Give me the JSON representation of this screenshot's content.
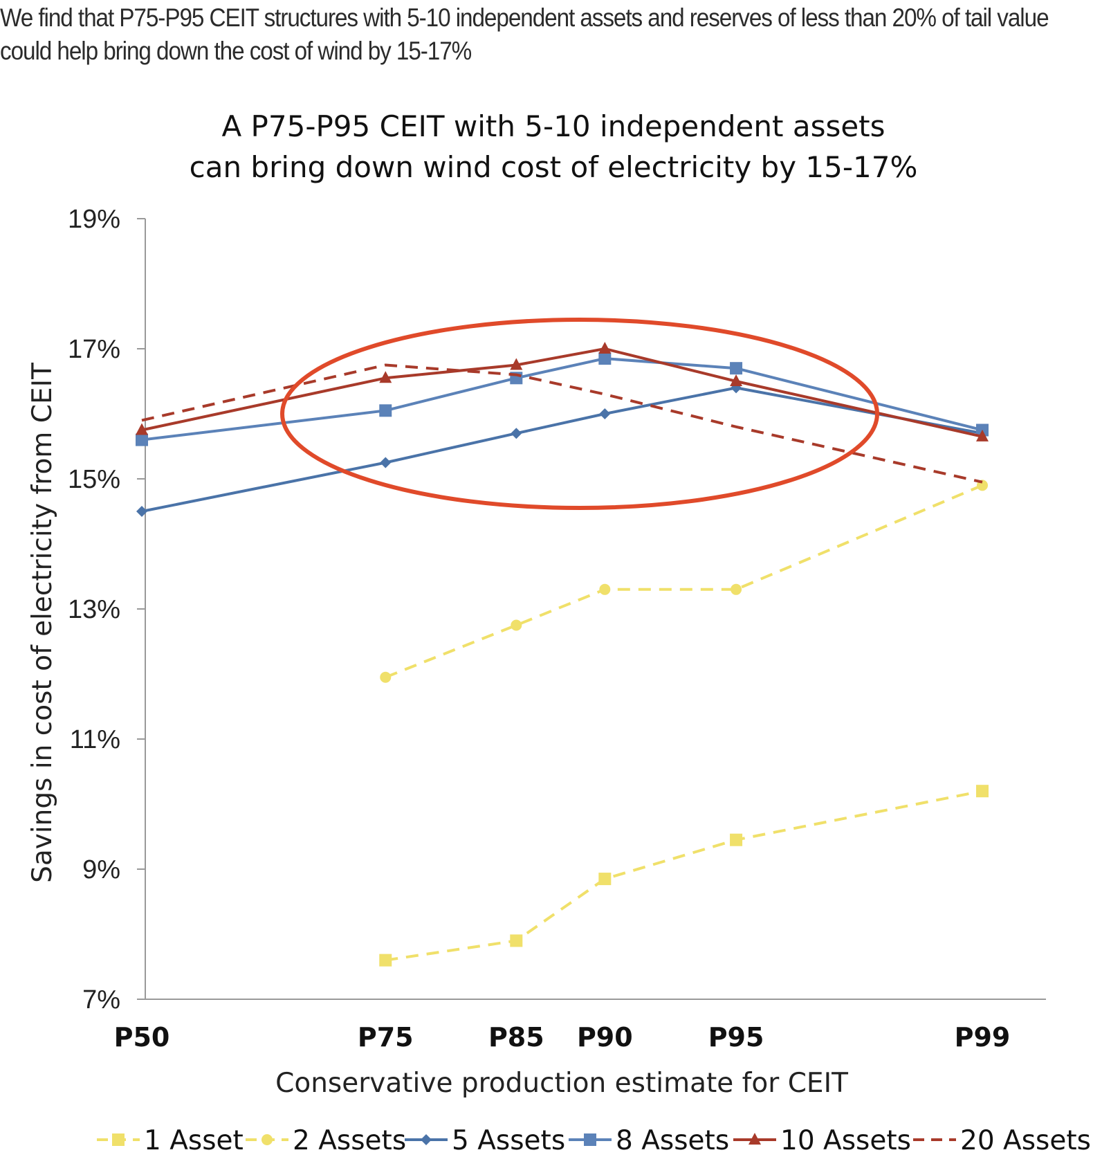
{
  "headline": {
    "line1": "We find that P75-P95 CEIT structures with 5-10 independent assets and reserves of less than 20% of tail value",
    "line2": "could help bring down the cost of wind by 15-17%"
  },
  "chart_data": {
    "type": "line",
    "title": [
      "A P75-P95 CEIT with 5-10 independent assets",
      "can bring down wind cost of electricity by 15-17%"
    ],
    "xlabel": "Conservative production estimate for CEIT",
    "ylabel": "Savings in cost of electricity from CEIT",
    "x_scale": "inverse-normal-quantile",
    "categories": [
      "P50",
      "P75",
      "P85",
      "P90",
      "P95",
      "P99"
    ],
    "category_positions": [
      50,
      75,
      85,
      90,
      95,
      99
    ],
    "ylim": [
      7,
      19
    ],
    "yticks": [
      7,
      9,
      11,
      13,
      15,
      17,
      19
    ],
    "ytick_labels": [
      "7%",
      "9%",
      "11%",
      "13%",
      "15%",
      "17%",
      "19%"
    ],
    "grid": false,
    "legend_position": "bottom",
    "annotation": "red ellipse highlighting P75-P95 region",
    "series": [
      {
        "name": "1 Asset",
        "color": "#f0e06a",
        "dash": "dashed",
        "marker": "square",
        "x": [
          75,
          85,
          90,
          95,
          99
        ],
        "values": [
          7.6,
          7.9,
          8.85,
          9.45,
          10.2
        ]
      },
      {
        "name": "2 Assets",
        "color": "#f0e06a",
        "dash": "dashed",
        "marker": "circle",
        "x": [
          75,
          85,
          90,
          95,
          99
        ],
        "values": [
          11.95,
          12.75,
          13.3,
          13.3,
          14.9
        ]
      },
      {
        "name": "5 Assets",
        "color": "#4a73a8",
        "dash": "solid",
        "marker": "diamond",
        "x": [
          50,
          75,
          85,
          90,
          95,
          99
        ],
        "values": [
          14.5,
          15.25,
          15.7,
          16.0,
          16.4,
          15.7
        ]
      },
      {
        "name": "8 Assets",
        "color": "#5b82b8",
        "dash": "solid",
        "marker": "square",
        "x": [
          50,
          75,
          85,
          90,
          95,
          99
        ],
        "values": [
          15.6,
          16.05,
          16.55,
          16.85,
          16.7,
          15.75
        ]
      },
      {
        "name": "10 Assets",
        "color": "#a83a2a",
        "dash": "solid",
        "marker": "triangle",
        "x": [
          50,
          75,
          85,
          90,
          95,
          99
        ],
        "values": [
          15.75,
          16.55,
          16.75,
          17.0,
          16.5,
          15.65
        ]
      },
      {
        "name": "20 Assets",
        "color": "#a83a2a",
        "dash": "dashed",
        "marker": "none",
        "x": [
          50,
          75,
          85,
          90,
          95,
          99
        ],
        "values": [
          15.9,
          16.75,
          16.6,
          16.3,
          15.8,
          14.95
        ]
      }
    ],
    "colors": {
      "axis": "#999999",
      "highlight": "#e04a2a"
    }
  }
}
